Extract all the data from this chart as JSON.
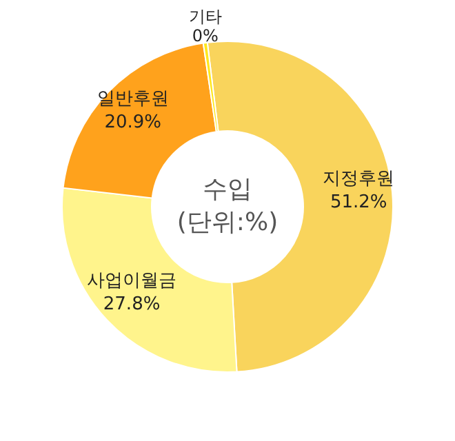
{
  "chart_data": {
    "type": "donut",
    "title": "수입\n(단위:%)",
    "categories": [
      "지정후원",
      "사업이월금",
      "일반후원",
      "기타"
    ],
    "values": [
      51.2,
      27.8,
      20.9,
      0.4
    ],
    "value_labels": [
      "51.2%",
      "27.8%",
      "20.9%",
      "0%"
    ],
    "colors": [
      "#f9d45c",
      "#fff48c",
      "#ffa21c",
      "#ffe81c"
    ]
  }
}
